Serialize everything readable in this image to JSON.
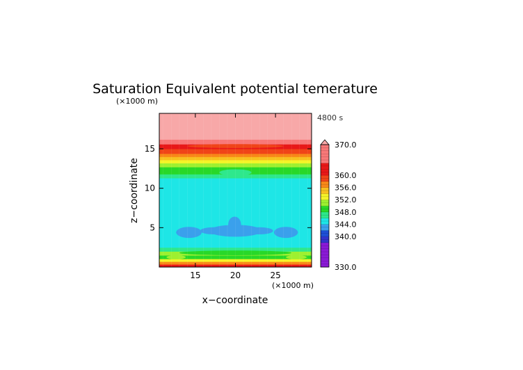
{
  "chart_data": {
    "type": "heatmap",
    "title": "Saturation Equivalent potential temerature",
    "time_label": "4800 s",
    "xlabel": "x−coordinate",
    "ylabel": "z−coordinate",
    "x_unit": "(×1000 m)",
    "z_unit": "(×1000 m)",
    "xlim": [
      10.5,
      29.5
    ],
    "ylim": [
      0,
      19.5
    ],
    "x_ticks": [
      "15",
      "20",
      "25"
    ],
    "y_ticks": [
      "5",
      "10",
      "15"
    ],
    "colorbar": {
      "min": 330,
      "max": 370,
      "labels": [
        "370.0",
        "360.0",
        "356.0",
        "352.0",
        "348.0",
        "344.0",
        "340.0",
        "330.0"
      ],
      "levels": [
        {
          "from": 330,
          "to": 338,
          "color": "#8a1ad6"
        },
        {
          "from": 338,
          "to": 340,
          "color": "#3333cc"
        },
        {
          "from": 340,
          "to": 342,
          "color": "#1e4fd6"
        },
        {
          "from": 342,
          "to": 344,
          "color": "#3aa0ec"
        },
        {
          "from": 344,
          "to": 346,
          "color": "#1ee6e6"
        },
        {
          "from": 346,
          "to": 348,
          "color": "#2ee88c"
        },
        {
          "from": 348,
          "to": 350,
          "color": "#28d828"
        },
        {
          "from": 350,
          "to": 352,
          "color": "#9ef030"
        },
        {
          "from": 352,
          "to": 354,
          "color": "#f4f428"
        },
        {
          "from": 354,
          "to": 356,
          "color": "#f8c020"
        },
        {
          "from": 356,
          "to": 358,
          "color": "#f88818"
        },
        {
          "from": 358,
          "to": 360,
          "color": "#f04418"
        },
        {
          "from": 360,
          "to": 364,
          "color": "#e81818"
        },
        {
          "from": 364,
          "to": 370,
          "color": "#f87878"
        },
        {
          "from": 370,
          "to": 372,
          "color": "#f8a8a8"
        }
      ]
    },
    "profile": [
      {
        "z_from": 0.0,
        "z_to": 0.35,
        "value": 360
      },
      {
        "z_from": 0.35,
        "z_to": 0.7,
        "value": 357
      },
      {
        "z_from": 0.7,
        "z_to": 1.05,
        "value": 353
      },
      {
        "z_from": 1.05,
        "z_to": 1.5,
        "value": 349
      },
      {
        "z_from": 1.5,
        "z_to": 2.0,
        "value": 351
      },
      {
        "z_from": 2.0,
        "z_to": 2.5,
        "value": 347
      },
      {
        "z_from": 2.5,
        "z_to": 3.5,
        "value": 345
      },
      {
        "z_from": 3.5,
        "z_to": 5.5,
        "value": 344.5
      },
      {
        "z_from": 5.5,
        "z_to": 11.3,
        "value": 345
      },
      {
        "z_from": 11.3,
        "z_to": 11.8,
        "value": 347
      },
      {
        "z_from": 11.8,
        "z_to": 12.7,
        "value": 349
      },
      {
        "z_from": 12.7,
        "z_to": 13.2,
        "value": 351
      },
      {
        "z_from": 13.2,
        "z_to": 13.6,
        "value": 353
      },
      {
        "z_from": 13.6,
        "z_to": 14.0,
        "value": 355
      },
      {
        "z_from": 14.0,
        "z_to": 14.4,
        "value": 357
      },
      {
        "z_from": 14.4,
        "z_to": 15.0,
        "value": 359
      },
      {
        "z_from": 15.0,
        "z_to": 15.6,
        "value": 362
      },
      {
        "z_from": 15.6,
        "z_to": 16.2,
        "value": 366
      },
      {
        "z_from": 16.2,
        "z_to": 19.5,
        "value": 371
      }
    ],
    "features": [
      {
        "kind": "ellipse",
        "x": 14.2,
        "z": 4.4,
        "rx": 1.6,
        "rz": 0.7,
        "value": 343
      },
      {
        "kind": "ellipse",
        "x": 17.3,
        "z": 4.6,
        "rx": 1.7,
        "rz": 0.45,
        "value": 343
      },
      {
        "kind": "ellipse",
        "x": 20.0,
        "z": 4.6,
        "rx": 3.3,
        "rz": 0.75,
        "value": 343
      },
      {
        "kind": "ellipse",
        "x": 19.9,
        "z": 5.4,
        "rx": 0.8,
        "rz": 1.0,
        "value": 343
      },
      {
        "kind": "ellipse",
        "x": 23.0,
        "z": 4.6,
        "rx": 1.7,
        "rz": 0.45,
        "value": 343
      },
      {
        "kind": "ellipse",
        "x": 26.3,
        "z": 4.4,
        "rx": 1.5,
        "rz": 0.7,
        "value": 343
      },
      {
        "kind": "ellipse",
        "x": 12.6,
        "z": 1.25,
        "rx": 1.2,
        "rz": 0.25,
        "value": 351
      },
      {
        "kind": "ellipse",
        "x": 27.6,
        "z": 1.25,
        "rx": 1.3,
        "rz": 0.25,
        "value": 351
      },
      {
        "kind": "ellipse",
        "x": 20.0,
        "z": 1.8,
        "rx": 7.0,
        "rz": 0.3,
        "value": 349
      },
      {
        "kind": "ellipse",
        "x": 20.0,
        "z": 12.0,
        "rx": 2.0,
        "rz": 0.4,
        "value": 347
      },
      {
        "kind": "ellipse",
        "x": 20.0,
        "z": 15.35,
        "rx": 6.0,
        "rz": 0.25,
        "value": 359
      }
    ]
  }
}
